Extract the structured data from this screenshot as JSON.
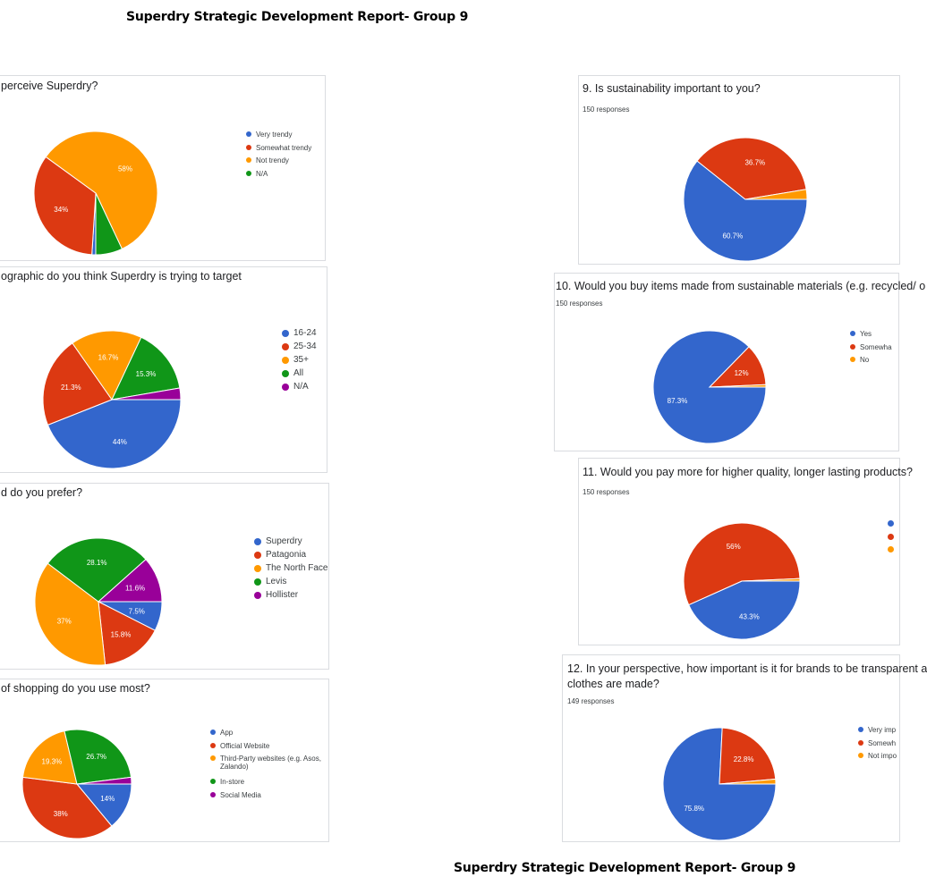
{
  "header": {
    "title_top": "Superdry Strategic Development Report- Group 9",
    "title_bottom": "Superdry Strategic Development Report- Group 9"
  },
  "colors": {
    "blue": "#3366cc",
    "red": "#dc3912",
    "orange": "#ff9900",
    "green": "#109618",
    "purple": "#990099"
  },
  "chart_data": [
    {
      "type": "pie",
      "title": "perceive Superdry?",
      "categories": [
        "Very trendy",
        "Somewhat trendy",
        "Not trendy",
        "N/A"
      ],
      "values": [
        1,
        34,
        58,
        7
      ],
      "labels": [
        "",
        "34%",
        "58%",
        ""
      ],
      "colors": [
        "#3366cc",
        "#dc3912",
        "#ff9900",
        "#109618"
      ]
    },
    {
      "type": "pie",
      "title": "ographic do you think Superdry is trying to target",
      "categories": [
        "16-24",
        "25-34",
        "35+",
        "All",
        "N/A"
      ],
      "values": [
        44,
        21.3,
        16.7,
        15.3,
        2.7
      ],
      "labels": [
        "44%",
        "21.3%",
        "16.7%",
        "15.3%",
        ""
      ],
      "colors": [
        "#3366cc",
        "#dc3912",
        "#ff9900",
        "#109618",
        "#990099"
      ]
    },
    {
      "type": "pie",
      "title": "d do you prefer?",
      "categories": [
        "Superdry",
        "Patagonia",
        "The North Face",
        "Levis",
        "Hollister"
      ],
      "values": [
        7.5,
        15.8,
        37,
        28.1,
        11.6
      ],
      "labels": [
        "7.5%",
        "15.8%",
        "37%",
        "28.1%",
        "11.6%"
      ],
      "colors": [
        "#3366cc",
        "#dc3912",
        "#ff9900",
        "#109618",
        "#990099"
      ]
    },
    {
      "type": "pie",
      "title": "of shopping do you use most?",
      "categories": [
        "App",
        "Official Website",
        "Third-Party websites (e.g. Asos, Zalando)",
        "In-store",
        "Social Media"
      ],
      "values": [
        14,
        38,
        19.3,
        26.7,
        2
      ],
      "labels": [
        "14%",
        "38%",
        "19.3%",
        "26.7%",
        ""
      ],
      "colors": [
        "#3366cc",
        "#dc3912",
        "#ff9900",
        "#109618",
        "#990099"
      ]
    },
    {
      "type": "pie",
      "title": "9. Is sustainability important to you?",
      "responses": "150 responses",
      "categories": [],
      "values": [
        60.7,
        36.7,
        2.6
      ],
      "labels": [
        "60.7%",
        "36.7%",
        ""
      ],
      "colors": [
        "#3366cc",
        "#dc3912",
        "#ff9900"
      ]
    },
    {
      "type": "pie",
      "title": "10. Would you buy items made from sustainable materials (e.g. recycled/ o",
      "responses": "150 responses",
      "categories": [
        "Yes",
        "Somewha",
        "No"
      ],
      "values": [
        87.3,
        12,
        0.7
      ],
      "labels": [
        "87.3%",
        "12%",
        ""
      ],
      "colors": [
        "#3366cc",
        "#dc3912",
        "#ff9900"
      ]
    },
    {
      "type": "pie",
      "title": "11. Would you pay more for higher quality, longer lasting products?",
      "responses": "150 responses",
      "categories": [],
      "values": [
        43.3,
        56,
        0.7
      ],
      "labels": [
        "43.3%",
        "56%",
        ""
      ],
      "colors": [
        "#3366cc",
        "#dc3912",
        "#ff9900"
      ]
    },
    {
      "type": "pie",
      "title": "12. In your perspective, how important is it for brands to be transparent a",
      "title_line2": "clothes are made?",
      "responses": "149 responses",
      "categories": [
        "Very imp",
        "Somewh",
        "Not impo"
      ],
      "values": [
        75.8,
        22.8,
        1.4
      ],
      "labels": [
        "75.8%",
        "22.8%",
        ""
      ],
      "colors": [
        "#3366cc",
        "#dc3912",
        "#ff9900"
      ]
    }
  ]
}
